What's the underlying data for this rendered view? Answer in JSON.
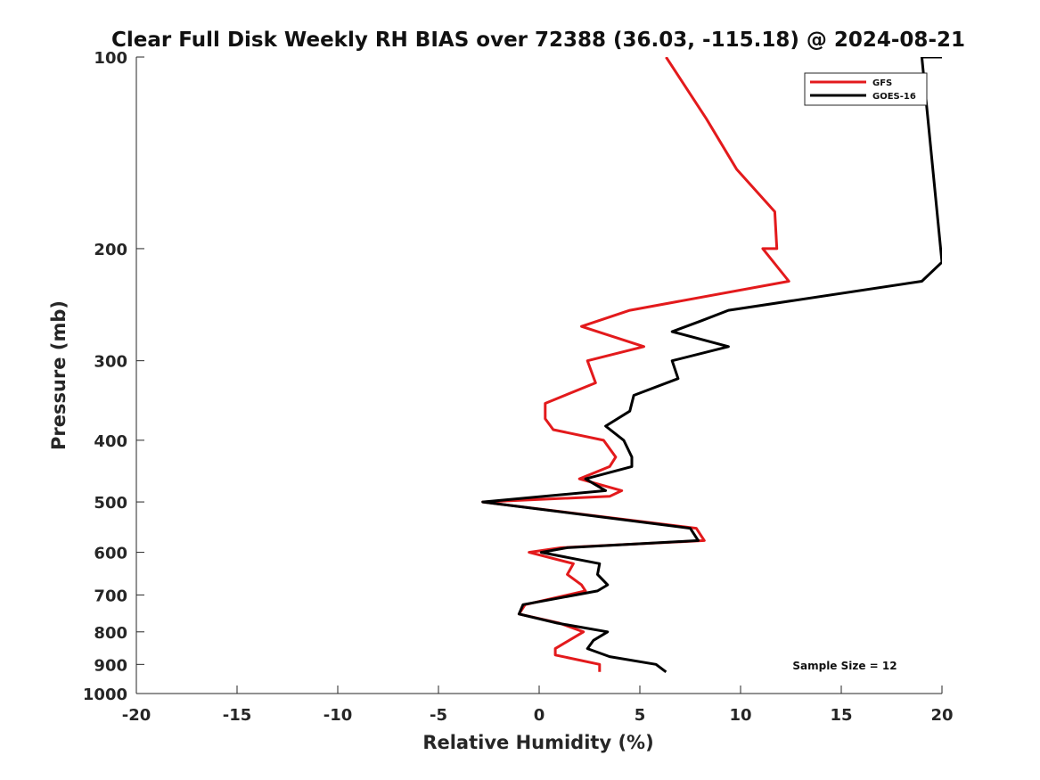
{
  "chart_data": {
    "type": "line",
    "title": "Clear Full Disk Weekly RH BIAS over 72388 (36.03, -115.18) @ 2024-08-21",
    "xlabel": "Relative Humidity (%)",
    "ylabel": "Pressure (mb)",
    "xlim": [
      -20,
      20
    ],
    "ylim": [
      100,
      1000
    ],
    "y_scale": "log",
    "y_reversed": true,
    "x_ticks": [
      "-20",
      "-15",
      "-10",
      "-5",
      "0",
      "5",
      "10",
      "15",
      "20"
    ],
    "y_ticks": [
      "100",
      "200",
      "300",
      "400",
      "500",
      "600",
      "700",
      "800",
      "900",
      "1000"
    ],
    "grid": false,
    "legend_position": "top-right",
    "annotation": "Sample Size = 12",
    "series": [
      {
        "name": "GFS",
        "color": "#e31a1c",
        "points": [
          [
            6.3,
            100
          ],
          [
            8.3,
            125
          ],
          [
            9.8,
            150
          ],
          [
            11.7,
            175
          ],
          [
            11.8,
            200
          ],
          [
            11.1,
            200
          ],
          [
            12.4,
            225
          ],
          [
            4.5,
            250
          ],
          [
            2.1,
            265
          ],
          [
            5.2,
            285
          ],
          [
            2.4,
            300
          ],
          [
            2.8,
            325
          ],
          [
            0.3,
            350
          ],
          [
            0.3,
            370
          ],
          [
            0.7,
            385
          ],
          [
            3.2,
            400
          ],
          [
            3.8,
            425
          ],
          [
            3.5,
            440
          ],
          [
            2.0,
            460
          ],
          [
            4.1,
            480
          ],
          [
            3.5,
            490
          ],
          [
            -2.8,
            500
          ],
          [
            7.8,
            550
          ],
          [
            8.2,
            575
          ],
          [
            1.1,
            590
          ],
          [
            -0.5,
            600
          ],
          [
            1.7,
            625
          ],
          [
            1.4,
            650
          ],
          [
            2.1,
            675
          ],
          [
            2.3,
            690
          ],
          [
            -0.7,
            725
          ],
          [
            -1.0,
            750
          ],
          [
            1.0,
            775
          ],
          [
            2.2,
            800
          ],
          [
            0.8,
            850
          ],
          [
            0.8,
            870
          ],
          [
            3.0,
            900
          ],
          [
            3.0,
            925
          ]
        ]
      },
      {
        "name": "GOES-16",
        "color": "#000000",
        "points": [
          [
            20.0,
            100
          ],
          [
            19.0,
            100
          ],
          [
            20.0,
            210
          ],
          [
            19.0,
            225
          ],
          [
            9.4,
            250
          ],
          [
            8.0,
            260
          ],
          [
            6.6,
            270
          ],
          [
            9.4,
            285
          ],
          [
            6.6,
            300
          ],
          [
            6.9,
            320
          ],
          [
            4.7,
            340
          ],
          [
            4.5,
            360
          ],
          [
            3.3,
            380
          ],
          [
            4.2,
            400
          ],
          [
            4.6,
            425
          ],
          [
            4.6,
            440
          ],
          [
            2.3,
            460
          ],
          [
            3.3,
            480
          ],
          [
            -2.8,
            500
          ],
          [
            7.5,
            550
          ],
          [
            7.9,
            575
          ],
          [
            1.4,
            590
          ],
          [
            0.1,
            600
          ],
          [
            3.0,
            625
          ],
          [
            2.9,
            650
          ],
          [
            3.4,
            675
          ],
          [
            2.9,
            690
          ],
          [
            -0.8,
            725
          ],
          [
            -1.0,
            750
          ],
          [
            0.9,
            775
          ],
          [
            3.4,
            800
          ],
          [
            2.7,
            825
          ],
          [
            2.4,
            850
          ],
          [
            3.5,
            875
          ],
          [
            5.8,
            900
          ],
          [
            6.3,
            925
          ]
        ]
      }
    ]
  }
}
